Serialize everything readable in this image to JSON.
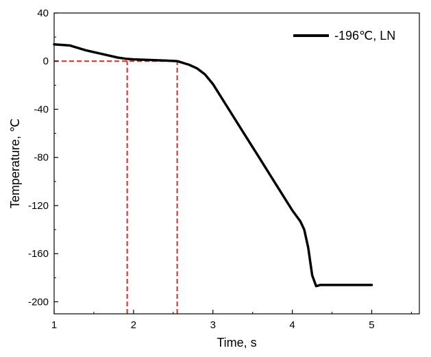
{
  "chart_data": {
    "type": "line",
    "xlabel": "Time, s",
    "ylabel": "Temperature, ℃",
    "xlim": [
      1,
      5.6
    ],
    "ylim": [
      -210,
      40
    ],
    "x_ticks": [
      1,
      2,
      3,
      4,
      5
    ],
    "y_ticks": [
      40,
      0,
      -40,
      -80,
      -120,
      -160,
      -200
    ],
    "grid": false,
    "legend_position": "top-right",
    "series": [
      {
        "name": "-196℃, LN",
        "color": "#000000",
        "x": [
          1.0,
          1.2,
          1.4,
          1.6,
          1.8,
          1.9,
          2.0,
          2.2,
          2.4,
          2.55,
          2.7,
          2.8,
          2.9,
          3.0,
          3.2,
          3.4,
          3.6,
          3.8,
          4.0,
          4.1,
          4.15,
          4.2,
          4.25,
          4.3,
          4.35,
          4.5,
          4.7,
          4.9,
          5.0
        ],
        "y": [
          14,
          13,
          9,
          6,
          3,
          2,
          1.5,
          1,
          0.5,
          0,
          -3,
          -6,
          -11,
          -19,
          -40,
          -61,
          -82,
          -103,
          -124,
          -133,
          -140,
          -155,
          -178,
          -187,
          -186,
          -186,
          -186,
          -186,
          -186
        ]
      }
    ],
    "annotations": [
      {
        "type": "hline",
        "y": 0,
        "x_from": 1,
        "x_to": 2.55,
        "color": "#d62728",
        "style": "dashed"
      },
      {
        "type": "vline",
        "x": 1.92,
        "y_from": -210,
        "y_to": 0,
        "color": "#d62728",
        "style": "dashed"
      },
      {
        "type": "vline",
        "x": 2.55,
        "y_from": -210,
        "y_to": 0,
        "color": "#d62728",
        "style": "dashed"
      }
    ]
  }
}
